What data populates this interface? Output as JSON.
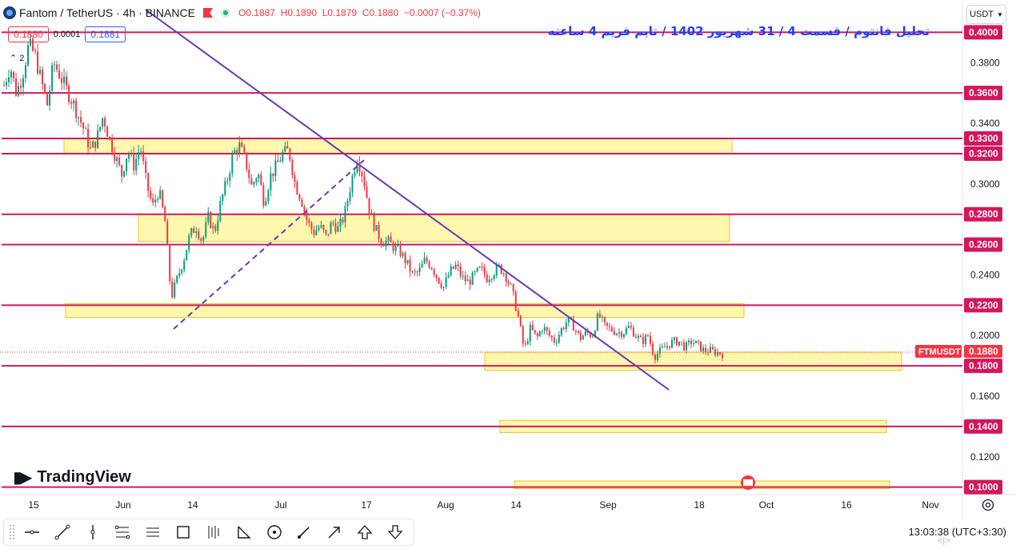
{
  "header": {
    "symbol_title": "Fantom / TetherUS · 4h · BINANCE",
    "ohlc_open": "O0.1887",
    "ohlc_high": "H0.1890",
    "ohlc_low": "L0.1879",
    "ohlc_close": "C0.1880",
    "ohlc_change": "−0.0007 (−0.37%)",
    "sell_price": "0.1880",
    "spread": "0.0001",
    "buy_price": "0.1881",
    "indicators_count": "2",
    "currency_select": "USDT"
  },
  "annotation_text": "تحلیل فانتوم / قسمت 4 / 31 شهریور 1402 / تایم فریم 4 ساعته",
  "branding": {
    "name": "TradingView"
  },
  "footer": {
    "clock": "13:03:38 (UTC+3:30)"
  },
  "toolbar": {
    "tools": [
      "horizontal-ray-icon",
      "trend-line-icon",
      "vertical-line-icon",
      "fib-retracement-icon",
      "parallel-channel-icon",
      "rectangle-icon",
      "long-position-icon",
      "triangle-pattern-icon",
      "circle-icon",
      "brush-icon",
      "arrow-icon",
      "arrow-up-icon",
      "arrow-down-icon"
    ]
  },
  "chart_data": {
    "type": "candlestick",
    "symbol": "FTMUSDT",
    "last_price": "0.1880",
    "y_range": [
      0.094,
      0.4055
    ],
    "y_ticks": [
      "0.1200",
      "0.1600",
      "0.2000",
      "0.2400",
      "0.3000",
      "0.3400",
      "0.3800"
    ],
    "x_ticks": [
      "15",
      "Jun",
      "14",
      "Jul",
      "17",
      "Aug",
      "14",
      "Sep",
      "18",
      "Oct",
      "16",
      "Nov"
    ],
    "levels": [
      "0.4000",
      "0.3600",
      "0.3300",
      "0.3200",
      "0.2800",
      "0.2600",
      "0.2200",
      "0.1800",
      "0.1400",
      "0.1000"
    ],
    "zones": [
      {
        "low": 0.32,
        "high": 0.33
      },
      {
        "low": 0.262,
        "high": 0.28
      },
      {
        "low": 0.212,
        "high": 0.221
      },
      {
        "low": 0.177,
        "high": 0.189
      },
      {
        "low": 0.136,
        "high": 0.144
      },
      {
        "low": 0.099,
        "high": 0.104
      }
    ],
    "close_path": [
      0.365,
      0.378,
      0.36,
      0.372,
      0.392,
      0.385,
      0.368,
      0.352,
      0.38,
      0.372,
      0.363,
      0.355,
      0.345,
      0.335,
      0.322,
      0.33,
      0.345,
      0.33,
      0.318,
      0.306,
      0.322,
      0.312,
      0.325,
      0.3,
      0.285,
      0.296,
      0.275,
      0.225,
      0.238,
      0.25,
      0.266,
      0.272,
      0.262,
      0.278,
      0.268,
      0.288,
      0.302,
      0.32,
      0.325,
      0.315,
      0.298,
      0.308,
      0.288,
      0.305,
      0.312,
      0.32,
      0.322,
      0.3,
      0.29,
      0.275,
      0.268,
      0.272,
      0.265,
      0.275,
      0.27,
      0.28,
      0.3,
      0.318,
      0.305,
      0.282,
      0.27,
      0.262,
      0.262,
      0.258,
      0.255,
      0.248,
      0.24,
      0.242,
      0.25,
      0.246,
      0.238,
      0.232,
      0.242,
      0.246,
      0.238,
      0.235,
      0.24,
      0.244,
      0.238,
      0.242,
      0.245,
      0.24,
      0.23,
      0.213,
      0.19,
      0.205,
      0.198,
      0.206,
      0.2,
      0.196,
      0.204,
      0.21,
      0.206,
      0.198,
      0.202,
      0.2,
      0.214,
      0.206,
      0.204,
      0.202,
      0.202,
      0.206,
      0.2,
      0.196,
      0.2,
      0.186,
      0.19,
      0.193,
      0.196,
      0.196,
      0.192,
      0.196,
      0.194,
      0.19,
      0.19,
      0.189,
      0.188
    ]
  }
}
